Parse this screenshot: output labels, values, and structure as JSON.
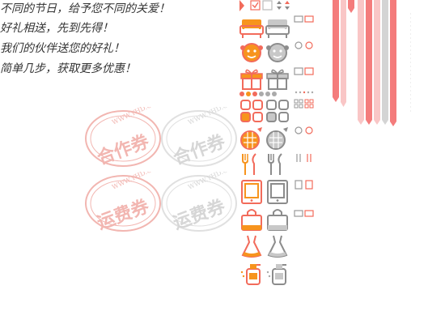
{
  "promo_lines": [
    "不同的节日，给予您不同的关爱！",
    "好礼相送，先到先得！",
    "我们的伙伴送您的好礼！",
    "简单几步，获取更多优惠！"
  ],
  "stamps": [
    {
      "url": "WWW.YHD.COM",
      "label": "合作券"
    },
    {
      "url": "WWW.YHD.COM",
      "label": "合作券"
    },
    {
      "url": "WWW.YHD.COM",
      "label": "运费券"
    },
    {
      "url": "WWW.YHD.COM",
      "label": "运费券"
    }
  ],
  "colors": {
    "accent": "#f26b5b",
    "orange": "#f7941d",
    "gray": "#8c8c8c",
    "stamp": "#f2b6b1",
    "ribbon_red": "#f47c7c",
    "ribbon_pink": "#f9c6c6",
    "ribbon_gray": "#d4d4d4"
  },
  "icon_rows": [
    "sofa-icon",
    "baby-face-icon",
    "gift-box-icon",
    "grid-category-icon",
    "fruit-icon",
    "cutlery-icon",
    "tablet-icon",
    "shopping-bag-icon",
    "dress-icon",
    "lotion-bottle-icon"
  ]
}
